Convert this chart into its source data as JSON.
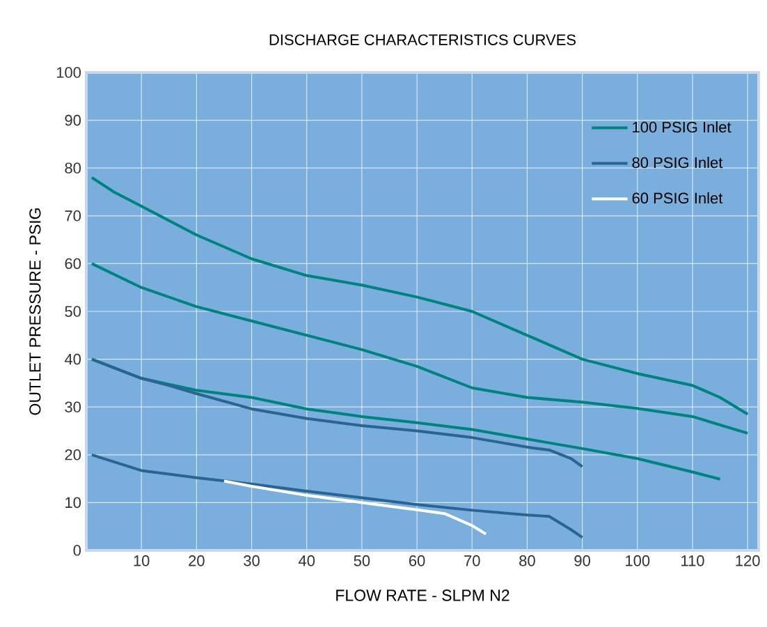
{
  "chart_data": {
    "type": "line",
    "title": "DISCHARGE CHARACTERISTICS CURVES",
    "xlabel": "FLOW RATE - SLPM N2",
    "ylabel": "OUTLET PRESSURE - PSIG",
    "xlim": [
      0,
      122
    ],
    "ylim": [
      0,
      100
    ],
    "xticks": [
      10,
      20,
      30,
      40,
      50,
      60,
      70,
      80,
      90,
      100,
      110,
      120
    ],
    "yticks": [
      0,
      10,
      20,
      30,
      40,
      50,
      60,
      70,
      80,
      90,
      100
    ],
    "grid": true,
    "legend": "top right",
    "marker": "none",
    "line_style": "solid",
    "series": [
      {
        "name": "100 PSIG Inlet",
        "color": "#00827f",
        "x": [
          1,
          5,
          10,
          20,
          30,
          40,
          50,
          60,
          70,
          80,
          90,
          100,
          110,
          115,
          120
        ],
        "values": [
          78,
          75,
          72,
          66,
          61,
          57.5,
          55.5,
          53,
          50,
          45,
          40,
          37,
          34.5,
          32,
          28.5
        ]
      },
      {
        "color": "#00827f",
        "x": [
          1,
          10,
          20,
          30,
          40,
          50,
          60,
          70,
          80,
          90,
          100,
          110,
          120
        ],
        "values": [
          60,
          55,
          51,
          48,
          45,
          42,
          38.5,
          34,
          32,
          31,
          29.7,
          28,
          24.5
        ]
      },
      {
        "color": "#00827f",
        "x": [
          1,
          10,
          20,
          30,
          40,
          50,
          60,
          70,
          80,
          90,
          100,
          110,
          115
        ],
        "values": [
          40,
          36,
          33.5,
          32,
          29.6,
          28,
          26.7,
          25.3,
          23.3,
          21.3,
          19.2,
          16.4,
          14.9
        ]
      },
      {
        "name": "80 PSIG Inlet",
        "color": "#2a6592",
        "x": [
          1,
          10,
          15,
          20,
          30,
          40,
          50,
          60,
          70,
          80,
          84,
          88,
          90
        ],
        "values": [
          40,
          36,
          34.5,
          32.8,
          29.6,
          27.6,
          26.1,
          25,
          23.6,
          21.6,
          21,
          19.2,
          17.5
        ]
      },
      {
        "color": "#2a6592",
        "x": [
          1,
          10,
          20,
          30,
          40,
          50,
          60,
          70,
          80,
          84,
          88,
          90
        ],
        "values": [
          20,
          16.7,
          15.2,
          13.9,
          12.4,
          11,
          9.6,
          8.4,
          7.4,
          7.1,
          4.3,
          2.7
        ]
      },
      {
        "name": "60 PSIG Inlet",
        "color": "#ffffff",
        "x": [
          25,
          30,
          40,
          50,
          60,
          65,
          70,
          72.5
        ],
        "values": [
          14.5,
          13.4,
          11.5,
          10,
          8.5,
          7.7,
          5.2,
          3.4
        ]
      }
    ]
  }
}
